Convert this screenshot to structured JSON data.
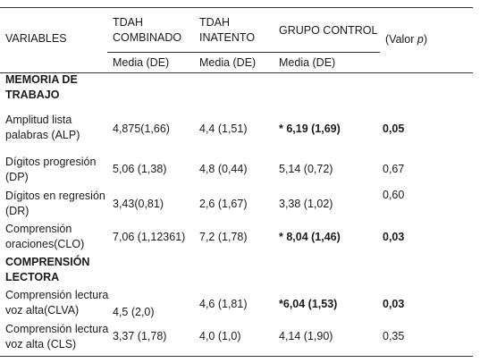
{
  "header": {
    "variables": "VARIABLES",
    "col1": [
      "TDAH",
      "COMBINADO"
    ],
    "col2": [
      "TDAH",
      "INATENTO"
    ],
    "col3": "GRUPO CONTROL",
    "col4_prefix": "(Valor ",
    "col4_p": "p",
    "col4_suffix": ")",
    "sub": "Media (DE)"
  },
  "sections": {
    "memoria": [
      "MEMORIA DE",
      "TRABAJO"
    ],
    "comprension": [
      "COMPRENSIÓN",
      "LECTORA"
    ]
  },
  "rows": [
    {
      "label": [
        "Amplitud lista",
        "palabras (ALP)"
      ],
      "c1": "4,875(1,66)",
      "c2": "4,4 (1,51)",
      "c3": "* 6,19 (1,69)",
      "p": "0,05"
    },
    {
      "label": [
        "Dígitos progresión",
        "(DP)"
      ],
      "c1": "5,06 (1,38)",
      "c2": "4,8 (0,44)",
      "c3": "5,14 (0,72)",
      "p": "0,67"
    },
    {
      "label": [
        "Dígitos en regresión",
        "(DR)"
      ],
      "c1": "3,43(0,81)",
      "c2": "2,6 (1,67)",
      "c3": "3,38 (1,02)",
      "p": "0,60"
    },
    {
      "label": [
        "Comprensión",
        "oraciones(CLO)"
      ],
      "c1": "7,06 (1,12361)",
      "c2": "7,2 (1,78)",
      "c3": "* 8,04 (1,46)",
      "p": "0,03"
    },
    {
      "label": [
        "Comprensión lectura",
        "voz alta(CLVA)"
      ],
      "c1": "4,5 (2,0)",
      "c2": "4,6 (1,81)",
      "c3": "*6,04 (1,53)",
      "p": "0,03"
    },
    {
      "label": [
        "Comprensión lectura",
        "voz alta (CLS)"
      ],
      "c1": "3,37 (1,78)",
      "c2": "4,0 (1,0)",
      "c3": "4,14 (1,90)",
      "p": "0,35"
    }
  ]
}
